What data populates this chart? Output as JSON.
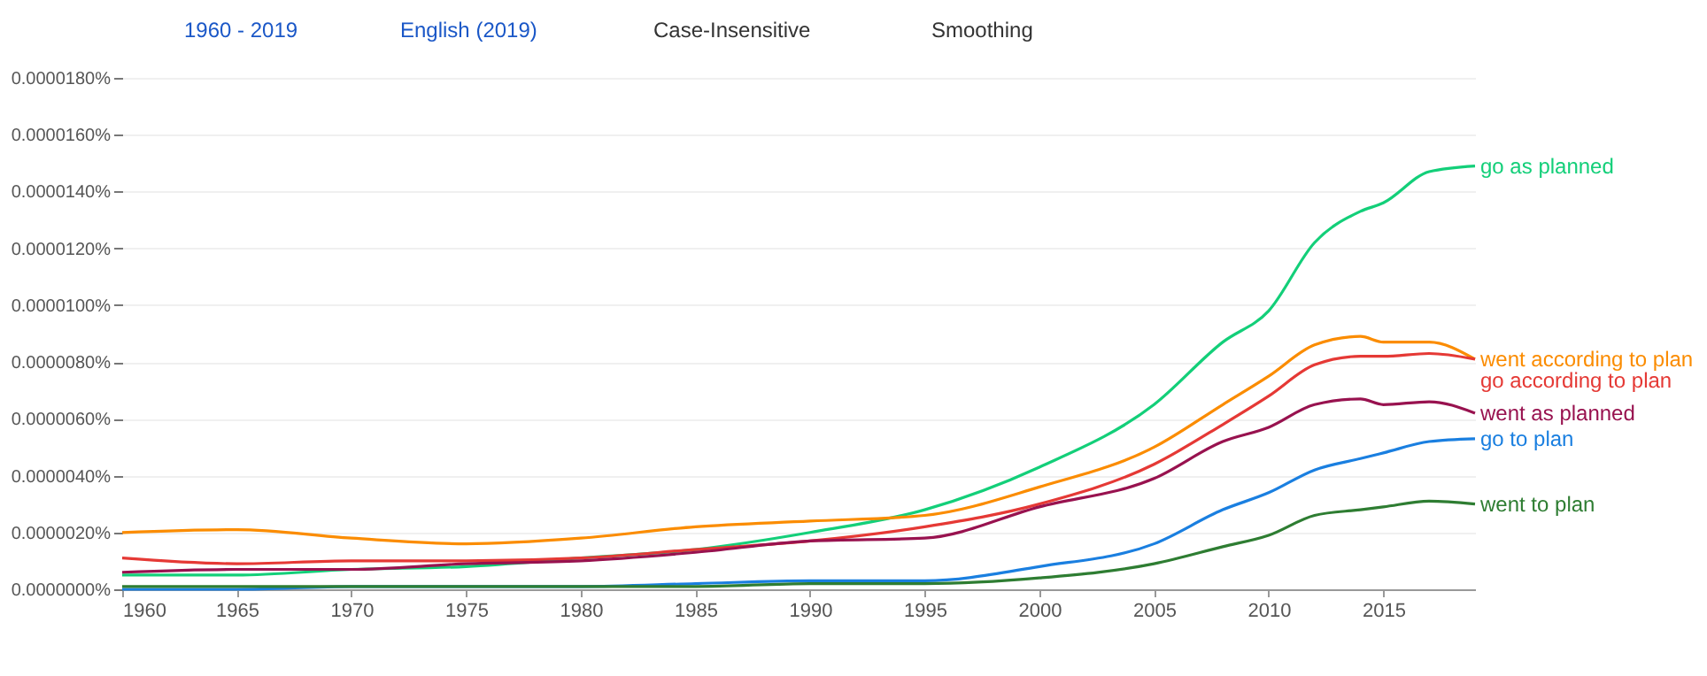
{
  "chart_data": {
    "type": "line",
    "annotations": [
      "1960 - 2019",
      "English (2019)",
      "Case-Insensitive",
      "Smoothing"
    ],
    "x": [
      1960,
      1965,
      1970,
      1975,
      1980,
      1985,
      1990,
      1995,
      2000,
      2005,
      2008,
      2010,
      2012,
      2014,
      2015,
      2017,
      2019
    ],
    "series": [
      {
        "name": "go as planned",
        "color": "#13cf79",
        "values": [
          5e-07,
          5e-07,
          7e-07,
          8e-07,
          1.1e-06,
          1.4e-06,
          2e-06,
          2.8e-06,
          4.3e-06,
          6.5e-06,
          8.7e-06,
          9.8e-06,
          1.22e-05,
          1.33e-05,
          1.36e-05,
          1.47e-05,
          1.49e-05
        ]
      },
      {
        "name": "went according to plan",
        "color": "#fb8c00",
        "values": [
          2e-06,
          2.1e-06,
          1.8e-06,
          1.6e-06,
          1.8e-06,
          2.2e-06,
          2.4e-06,
          2.6e-06,
          3.6e-06,
          5e-06,
          6.5e-06,
          7.5e-06,
          8.6e-06,
          8.9e-06,
          8.7e-06,
          8.7e-06,
          8.1e-06
        ]
      },
      {
        "name": "go according to plan",
        "color": "#e53935",
        "values": [
          1.1e-06,
          9e-07,
          1e-06,
          1e-06,
          1.1e-06,
          1.4e-06,
          1.7e-06,
          2.2e-06,
          3e-06,
          4.4e-06,
          5.8e-06,
          6.8e-06,
          7.9e-06,
          8.2e-06,
          8.2e-06,
          8.3e-06,
          8.1e-06
        ]
      },
      {
        "name": "went as planned",
        "color": "#98124f",
        "values": [
          6e-07,
          7e-07,
          7e-07,
          9e-07,
          1e-06,
          1.3e-06,
          1.7e-06,
          1.8e-06,
          2.9e-06,
          3.9e-06,
          5.2e-06,
          5.7e-06,
          6.5e-06,
          6.7e-06,
          6.5e-06,
          6.6e-06,
          6.2e-06
        ]
      },
      {
        "name": "go to plan",
        "color": "#1a7fe0",
        "values": [
          0.0,
          0.0,
          1e-07,
          1e-07,
          1e-07,
          2e-07,
          3e-07,
          3e-07,
          8e-07,
          1.6e-06,
          2.8e-06,
          3.4e-06,
          4.2e-06,
          4.6e-06,
          4.8e-06,
          5.2e-06,
          5.3e-06
        ]
      },
      {
        "name": "went to plan",
        "color": "#2e7d32",
        "values": [
          1e-07,
          1e-07,
          1e-07,
          1e-07,
          1e-07,
          1e-07,
          2e-07,
          2e-07,
          4e-07,
          9e-07,
          1.5e-06,
          1.9e-06,
          2.6e-06,
          2.8e-06,
          2.9e-06,
          3.1e-06,
          3e-06
        ]
      }
    ],
    "xlim": [
      1960,
      2019
    ],
    "xticks": [
      1960,
      1965,
      1970,
      1975,
      1980,
      1985,
      1990,
      1995,
      2000,
      2005,
      2010,
      2015
    ],
    "ylim": [
      0,
      1.8e-05
    ],
    "yticks": [
      {
        "value": 0,
        "label": "0.0000000%"
      },
      {
        "value": 2e-06,
        "label": "0.0000020%"
      },
      {
        "value": 4e-06,
        "label": "0.0000040%"
      },
      {
        "value": 6e-06,
        "label": "0.0000060%"
      },
      {
        "value": 8e-06,
        "label": "0.0000080%"
      },
      {
        "value": 1e-05,
        "label": "0.0000100%"
      },
      {
        "value": 1.2e-05,
        "label": "0.0000120%"
      },
      {
        "value": 1.4e-05,
        "label": "0.0000140%"
      },
      {
        "value": 1.6e-05,
        "label": "0.0000160%"
      },
      {
        "value": 1.8e-05,
        "label": "0.0000180%"
      }
    ],
    "grid": "y",
    "line_style": "solid",
    "marker": "none"
  }
}
